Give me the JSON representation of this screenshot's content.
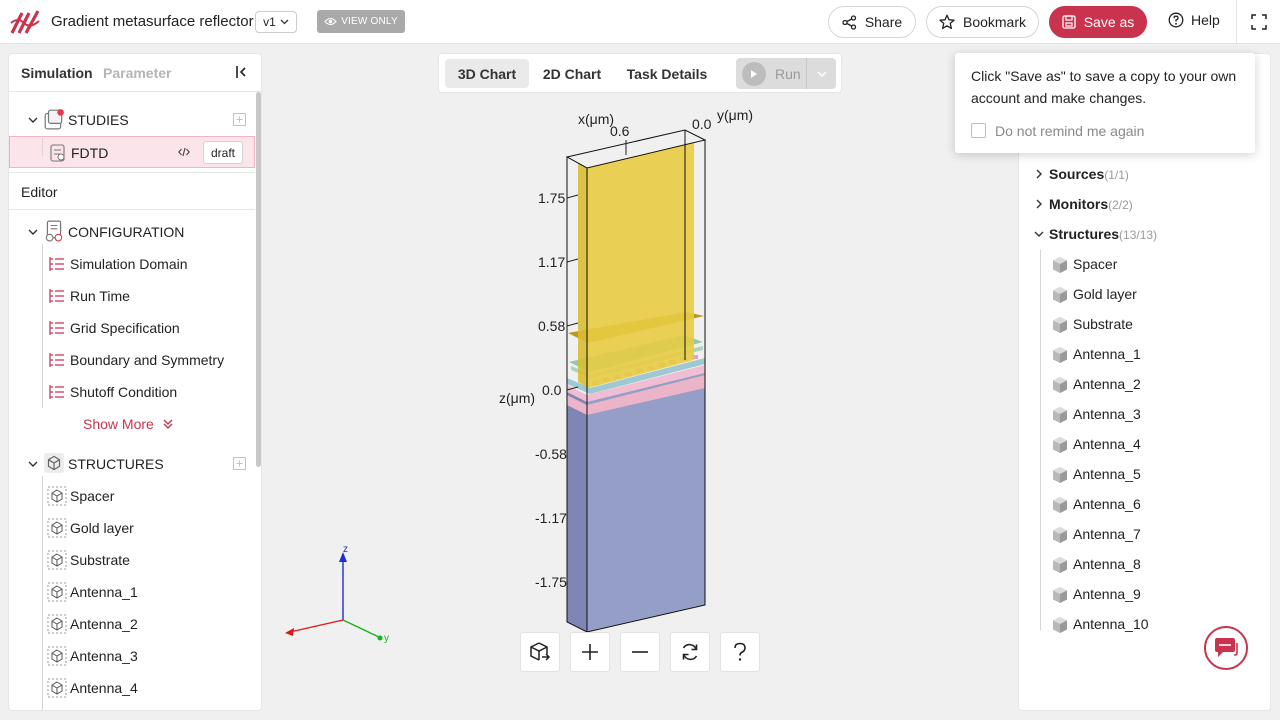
{
  "header": {
    "title": "Gradient metasurface reflector",
    "version": "v1",
    "view_only": "VIEW ONLY",
    "share": "Share",
    "bookmark": "Bookmark",
    "save_as": "Save as",
    "help": "Help",
    "brand_color": "#c9334d"
  },
  "left_panel": {
    "tab_simulation": "Simulation",
    "tab_parameter": "Parameter",
    "studies_label": "STUDIES",
    "study_item": "FDTD",
    "study_badge": "draft",
    "editor_label": "Editor",
    "configuration_label": "CONFIGURATION",
    "config_items": [
      "Simulation Domain",
      "Run Time",
      "Grid Specification",
      "Boundary and Symmetry",
      "Shutoff Condition"
    ],
    "show_more": "Show More",
    "structures_label": "STRUCTURES",
    "structure_items": [
      "Spacer",
      "Gold layer",
      "Substrate",
      "Antenna_1",
      "Antenna_2",
      "Antenna_3",
      "Antenna_4"
    ]
  },
  "center": {
    "tabs": [
      "3D Chart",
      "2D Chart",
      "Task Details"
    ],
    "run": "Run",
    "axis_x_label": "x(μm)",
    "axis_y_label": "y(μm)",
    "axis_z_label": "z(μm)",
    "x_tick": "0.6",
    "y_tick": "0.0",
    "z_ticks": [
      "1.75",
      "1.17",
      "0.58",
      "0.0",
      "-0.58",
      "-1.17",
      "-1.75"
    ],
    "gizmo_z": "z",
    "gizmo_y": "y"
  },
  "right_panel": {
    "sources_label": "Sources",
    "sources_count": "(1/1)",
    "monitors_label": "Monitors",
    "monitors_count": "(2/2)",
    "structures_label": "Structures",
    "structures_count": "(13/13)",
    "structure_items": [
      "Spacer",
      "Gold layer",
      "Substrate",
      "Antenna_1",
      "Antenna_2",
      "Antenna_3",
      "Antenna_4",
      "Antenna_5",
      "Antenna_6",
      "Antenna_7",
      "Antenna_8",
      "Antenna_9",
      "Antenna_10"
    ]
  },
  "popover": {
    "message": "Click \"Save as\" to save a copy to your own account and make changes.",
    "checkbox_label": "Do not remind me again"
  }
}
